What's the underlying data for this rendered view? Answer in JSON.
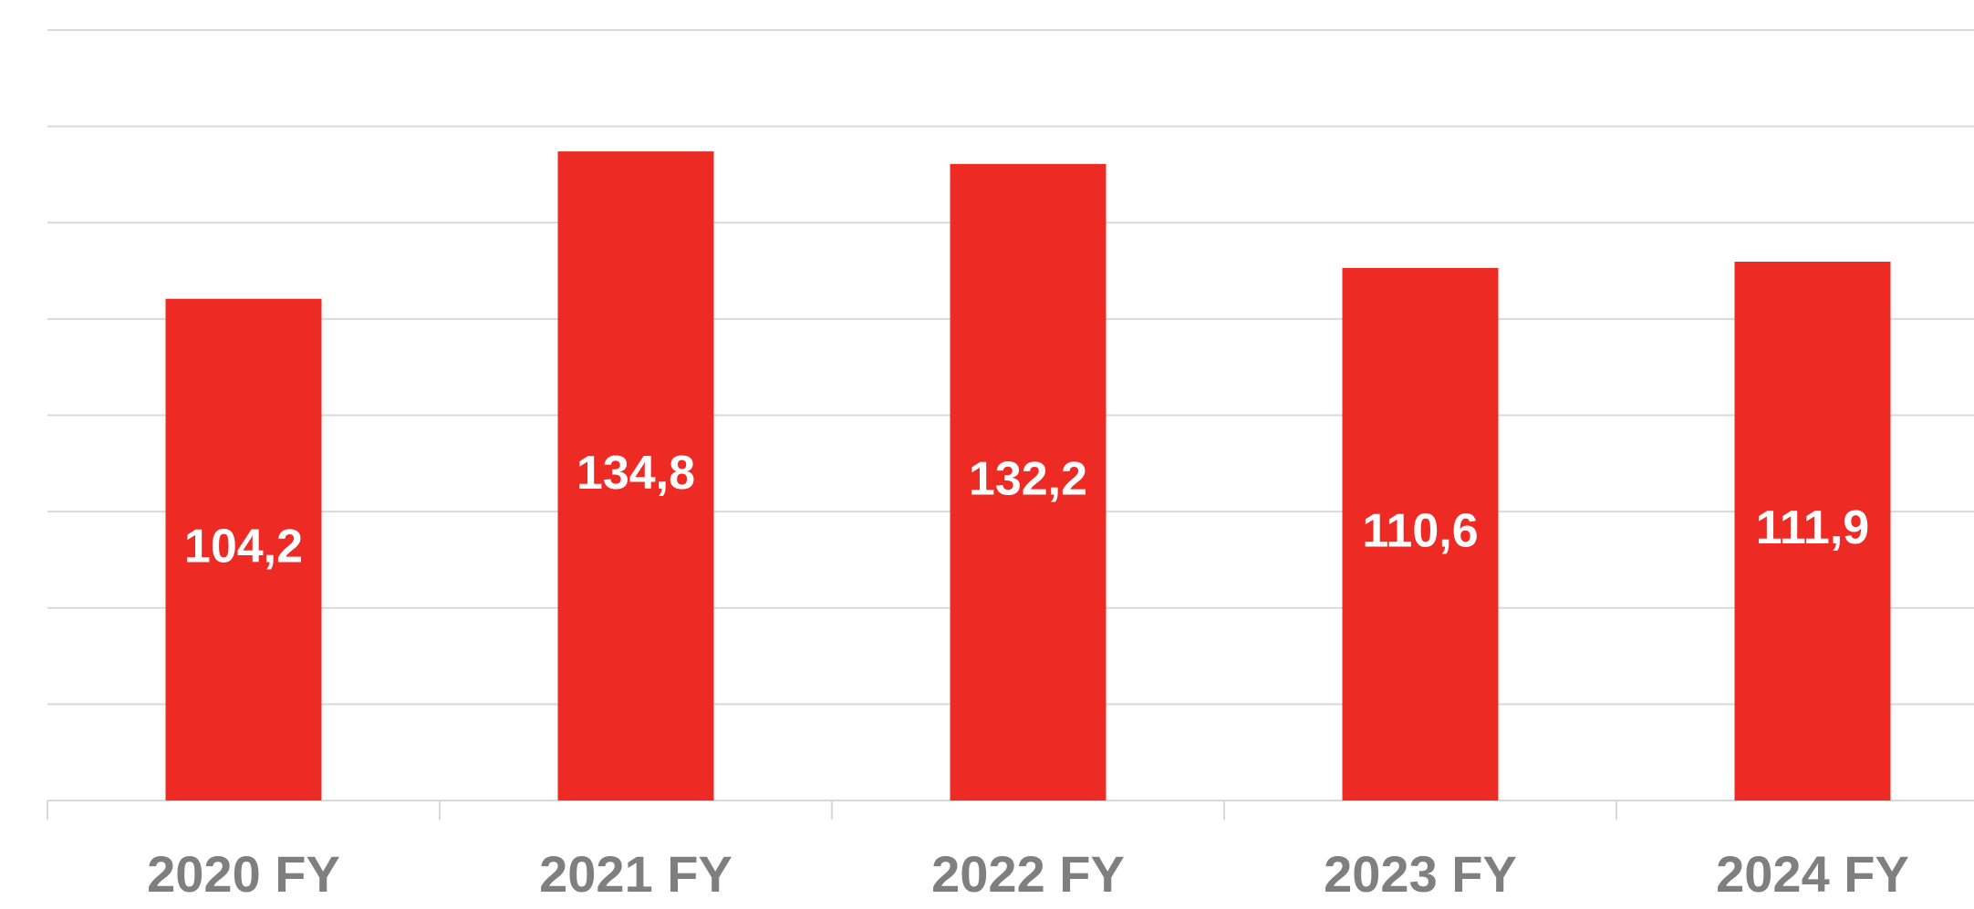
{
  "chart_data": {
    "type": "bar",
    "categories": [
      "2020 FY",
      "2021 FY",
      "2022 FY",
      "2023 FY",
      "2024 FY"
    ],
    "values": [
      104.2,
      134.8,
      132.2,
      110.6,
      111.9
    ],
    "value_labels": [
      "104,2",
      "134,8",
      "132,2",
      "110,6",
      "111,9"
    ],
    "color": "#ee2a24",
    "ylim": [
      0,
      160
    ],
    "yticks": [
      0,
      20,
      40,
      60,
      80,
      100,
      120,
      140,
      160
    ],
    "grid": true
  }
}
